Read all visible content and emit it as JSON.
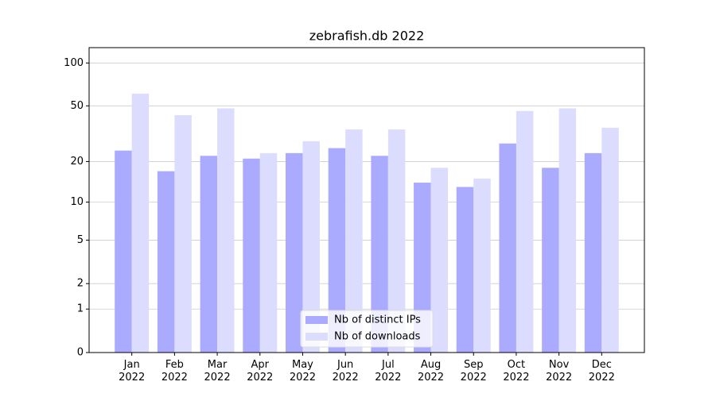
{
  "chart_data": {
    "type": "bar",
    "title": "zebrafish.db 2022",
    "categories": [
      "Jan\n2022",
      "Feb\n2022",
      "Mar\n2022",
      "Apr\n2022",
      "May\n2022",
      "Jun\n2022",
      "Jul\n2022",
      "Aug\n2022",
      "Sep\n2022",
      "Oct\n2022",
      "Nov\n2022",
      "Dec\n2022"
    ],
    "series": [
      {
        "name": "Nb of distinct IPs",
        "color": "#aaaaff",
        "values": [
          24,
          17,
          22,
          21,
          23,
          25,
          22,
          14,
          13,
          27,
          18,
          23
        ]
      },
      {
        "name": "Nb of downloads",
        "color": "#dcdcff",
        "values": [
          61,
          43,
          48,
          23,
          28,
          34,
          34,
          18,
          15,
          46,
          48,
          35
        ]
      }
    ],
    "yscale": "log1p",
    "ylim": [
      0,
      128
    ],
    "yticks": [
      0,
      1,
      2,
      5,
      10,
      20,
      50,
      100
    ],
    "grid": true,
    "legend": "lower center"
  }
}
